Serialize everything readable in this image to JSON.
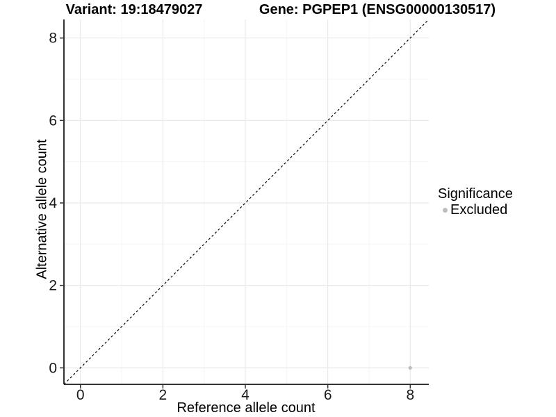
{
  "chart_data": {
    "type": "scatter",
    "title_left": "Variant: 19:18479027",
    "title_right": "Gene: PGPEP1 (ENSG00000130517)",
    "xlabel": "Reference allele count",
    "ylabel": "Alternative allele count",
    "xlim": [
      -0.4,
      8.45
    ],
    "ylim": [
      -0.4,
      8.45
    ],
    "xticks": [
      0,
      2,
      4,
      6,
      8
    ],
    "yticks": [
      0,
      2,
      4,
      6,
      8
    ],
    "xticks_minor": [
      1,
      3,
      5,
      7
    ],
    "yticks_minor": [
      1,
      3,
      5,
      7
    ],
    "grid": true,
    "legend_title": "Significance",
    "legend_position": "right",
    "reference_line": {
      "type": "identity y=x",
      "style": "dashed",
      "color": "#000000"
    },
    "series": [
      {
        "name": "Excluded",
        "color": "#bdbdbd",
        "points": [
          {
            "x": 8,
            "y": 0
          }
        ]
      }
    ],
    "colors": {
      "background": "#ffffff",
      "grid_major": "#e9e9e9",
      "grid_minor": "#f5f5f5",
      "axis_line": "#333333",
      "tick": "#333333",
      "text": "#000000",
      "point": "#bdbdbd"
    }
  }
}
